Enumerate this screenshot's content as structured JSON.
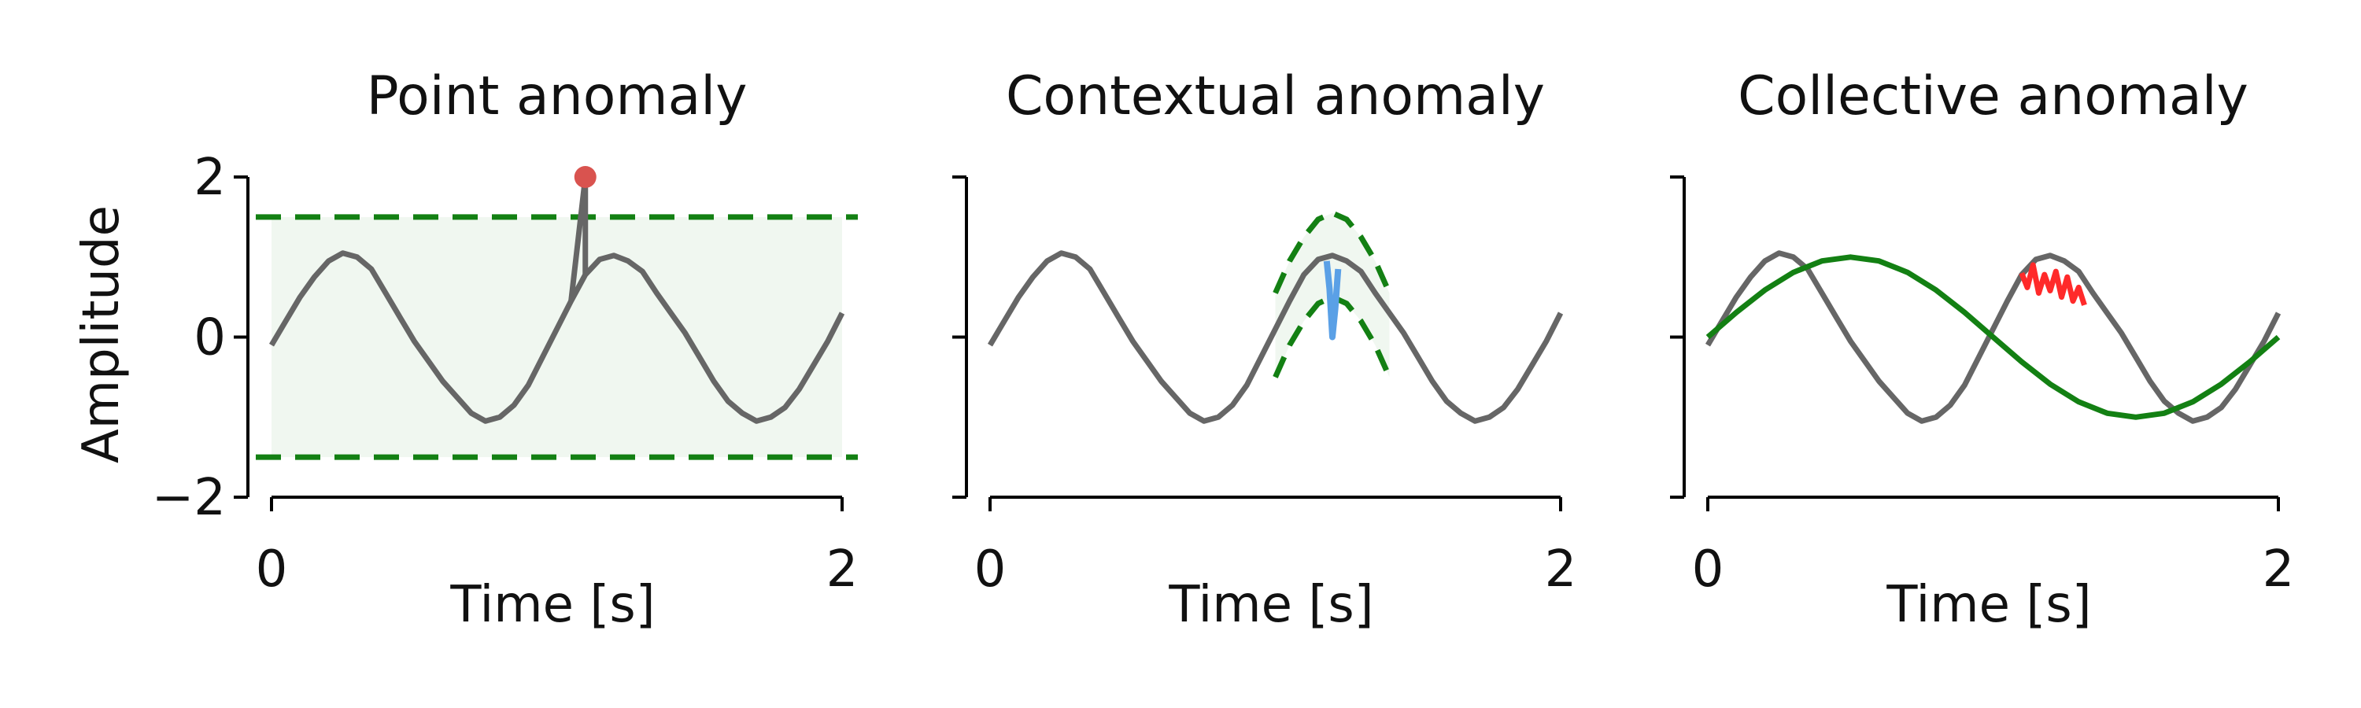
{
  "figure": {
    "ylabel": "Amplitude",
    "xlabel": "Time [s]"
  },
  "colors": {
    "signal": "#666666",
    "threshold": "#138013",
    "band_fill": "#e6f2e6",
    "point_marker": "#d9534f",
    "contextual": "#5aa0e6",
    "collective": "#ff2a2a",
    "fit": "#138013"
  },
  "chart_data": [
    {
      "type": "line",
      "title": "Point anomaly",
      "xlabel": "Time [s]",
      "ylabel": "Amplitude",
      "xlim": [
        0,
        2
      ],
      "ylim": [
        -2,
        2
      ],
      "xticks": [
        "0",
        "2"
      ],
      "yticks": [
        "2",
        "0",
        "−2"
      ],
      "series": [
        {
          "role": "signal",
          "x": [
            0.0,
            0.05,
            0.1,
            0.15,
            0.2,
            0.25,
            0.3,
            0.35,
            0.4,
            0.45,
            0.5,
            0.55,
            0.6,
            0.65,
            0.7,
            0.75,
            0.8,
            0.85,
            0.9,
            0.95,
            1.0,
            1.05,
            1.1,
            1.15,
            1.2,
            1.25,
            1.3,
            1.35,
            1.4,
            1.45,
            1.5,
            1.55,
            1.6,
            1.65,
            1.7,
            1.75,
            1.8,
            1.85,
            1.9,
            1.95,
            2.0
          ],
          "y": [
            -0.1,
            0.2,
            0.5,
            0.75,
            0.95,
            1.05,
            1.0,
            0.85,
            0.55,
            0.25,
            -0.05,
            -0.3,
            -0.55,
            -0.75,
            -0.95,
            -1.05,
            -1.0,
            -0.85,
            -0.6,
            -0.25,
            0.1,
            0.45,
            0.78,
            0.97,
            1.02,
            0.95,
            0.82,
            0.55,
            0.3,
            0.05,
            -0.25,
            -0.55,
            -0.8,
            -0.95,
            -1.05,
            -1.0,
            -0.88,
            -0.65,
            -0.35,
            -0.05,
            0.3
          ]
        }
      ],
      "anomaly_point": {
        "x": 1.1,
        "y": 2.0
      },
      "thresholds": [
        1.5,
        -1.5
      ]
    },
    {
      "type": "line",
      "title": "Contextual anomaly",
      "xlabel": "Time [s]",
      "xlim": [
        0,
        2
      ],
      "ylim": [
        -2,
        2
      ],
      "xticks": [
        "0",
        "2"
      ],
      "series": [
        {
          "role": "signal",
          "x": [
            0.0,
            0.05,
            0.1,
            0.15,
            0.2,
            0.25,
            0.3,
            0.35,
            0.4,
            0.45,
            0.5,
            0.55,
            0.6,
            0.65,
            0.7,
            0.75,
            0.8,
            0.85,
            0.9,
            0.95,
            1.0,
            1.05,
            1.1,
            1.15,
            1.2,
            1.25,
            1.3,
            1.35,
            1.4,
            1.45,
            1.5,
            1.55,
            1.6,
            1.65,
            1.7,
            1.75,
            1.8,
            1.85,
            1.9,
            1.95,
            2.0
          ],
          "y": [
            -0.1,
            0.2,
            0.5,
            0.75,
            0.95,
            1.05,
            1.0,
            0.85,
            0.55,
            0.25,
            -0.05,
            -0.3,
            -0.55,
            -0.75,
            -0.95,
            -1.05,
            -1.0,
            -0.85,
            -0.6,
            -0.25,
            0.1,
            0.45,
            0.78,
            0.97,
            1.02,
            0.95,
            0.82,
            0.55,
            0.3,
            0.05,
            -0.25,
            -0.55,
            -0.8,
            -0.95,
            -1.05,
            -1.0,
            -0.88,
            -0.65,
            -0.35,
            -0.05,
            0.3
          ]
        },
        {
          "role": "contextual-anomaly",
          "x": [
            1.18,
            1.19,
            1.2,
            1.21,
            1.22
          ],
          "y": [
            0.95,
            0.6,
            0.0,
            0.35,
            0.85
          ]
        }
      ],
      "bounds": {
        "x": [
          1.0,
          1.05,
          1.1,
          1.15,
          1.2,
          1.25,
          1.3,
          1.35,
          1.4
        ],
        "upper": [
          0.55,
          0.95,
          1.25,
          1.47,
          1.55,
          1.47,
          1.25,
          0.95,
          0.55
        ],
        "lower": [
          -0.5,
          -0.1,
          0.2,
          0.42,
          0.5,
          0.42,
          0.2,
          -0.1,
          -0.5
        ]
      }
    },
    {
      "type": "line",
      "title": "Collective anomaly",
      "xlabel": "Time [s]",
      "xlim": [
        0,
        2
      ],
      "ylim": [
        -2,
        2
      ],
      "xticks": [
        "0",
        "2"
      ],
      "series": [
        {
          "role": "signal",
          "x": [
            0.0,
            0.05,
            0.1,
            0.15,
            0.2,
            0.25,
            0.3,
            0.35,
            0.4,
            0.45,
            0.5,
            0.55,
            0.6,
            0.65,
            0.7,
            0.75,
            0.8,
            0.85,
            0.9,
            0.95,
            1.0,
            1.05,
            1.1,
            1.15,
            1.2,
            1.25,
            1.3,
            1.35,
            1.4,
            1.45,
            1.5,
            1.55,
            1.6,
            1.65,
            1.7,
            1.75,
            1.8,
            1.85,
            1.9,
            1.95,
            2.0
          ],
          "y": [
            -0.1,
            0.2,
            0.5,
            0.75,
            0.95,
            1.05,
            1.0,
            0.85,
            0.55,
            0.25,
            -0.05,
            -0.3,
            -0.55,
            -0.75,
            -0.95,
            -1.05,
            -1.0,
            -0.85,
            -0.6,
            -0.25,
            0.1,
            0.45,
            0.78,
            0.97,
            1.02,
            0.95,
            0.82,
            0.55,
            0.3,
            0.05,
            -0.25,
            -0.55,
            -0.8,
            -0.95,
            -1.05,
            -1.0,
            -0.88,
            -0.65,
            -0.35,
            -0.05,
            0.3
          ]
        },
        {
          "role": "collective-anomaly",
          "x": [
            1.1,
            1.12,
            1.14,
            1.16,
            1.18,
            1.2,
            1.22,
            1.24,
            1.26,
            1.28,
            1.3,
            1.32
          ],
          "y": [
            0.8,
            0.62,
            0.9,
            0.55,
            0.78,
            0.58,
            0.82,
            0.5,
            0.75,
            0.45,
            0.62,
            0.4
          ]
        },
        {
          "role": "sine-fit",
          "function": "sin(pi*x)",
          "x": [
            0.0,
            0.1,
            0.2,
            0.3,
            0.4,
            0.5,
            0.6,
            0.7,
            0.8,
            0.9,
            1.0,
            1.1,
            1.2,
            1.3,
            1.4,
            1.5,
            1.6,
            1.7,
            1.8,
            1.9,
            2.0
          ],
          "y": [
            0.0,
            0.309,
            0.588,
            0.809,
            0.951,
            1.0,
            0.951,
            0.809,
            0.588,
            0.309,
            0.0,
            -0.309,
            -0.588,
            -0.809,
            -0.951,
            -1.0,
            -0.951,
            -0.809,
            -0.588,
            -0.309,
            0.0
          ]
        }
      ]
    }
  ]
}
